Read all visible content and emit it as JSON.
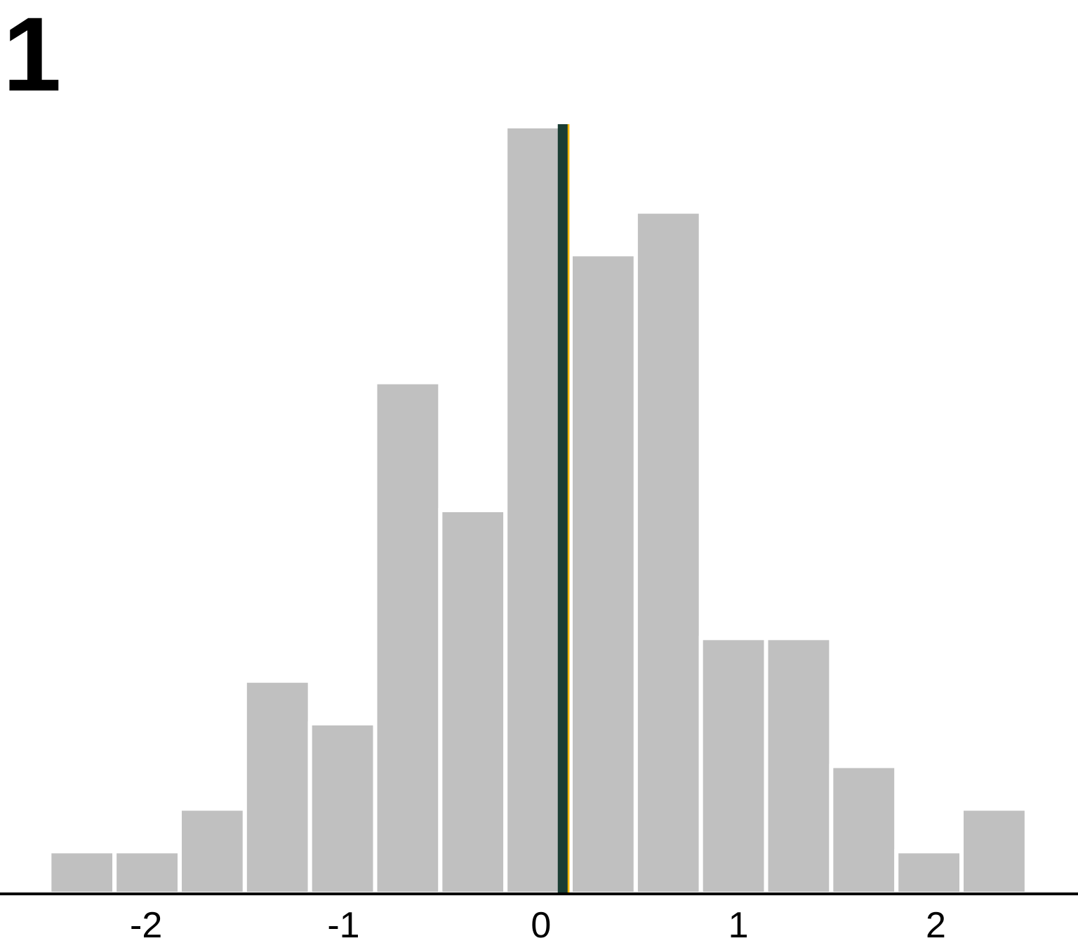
{
  "panel_label": "1",
  "chart_data": {
    "type": "bar",
    "subtype": "histogram",
    "title": "",
    "xlabel": "",
    "ylabel": "",
    "bin_width": 0.33,
    "bin_edges": [
      -2.49,
      -2.16,
      -1.83,
      -1.5,
      -1.17,
      -0.84,
      -0.51,
      -0.18,
      0.15,
      0.48,
      0.81,
      1.14,
      1.47,
      1.8,
      2.13,
      2.46
    ],
    "counts": [
      1,
      1,
      2,
      5,
      4,
      12,
      9,
      18,
      15,
      16,
      6,
      6,
      3,
      1,
      2
    ],
    "xlim": [
      -2.74,
      2.72
    ],
    "ylim": [
      0,
      18
    ],
    "xticks": [
      -2,
      -1,
      0,
      1,
      2
    ],
    "xtick_labels": [
      "-2",
      "-1",
      "0",
      "1",
      "2"
    ],
    "grid": false,
    "bar_color": "#c0c0c0",
    "bar_edge_color": "#ffffff",
    "vlines": [
      {
        "name": "mean",
        "x": 0.13,
        "color": "#f5b800"
      },
      {
        "name": "median",
        "x": 0.11,
        "color": "#1a3d33"
      }
    ],
    "axis_color": "#000000"
  }
}
